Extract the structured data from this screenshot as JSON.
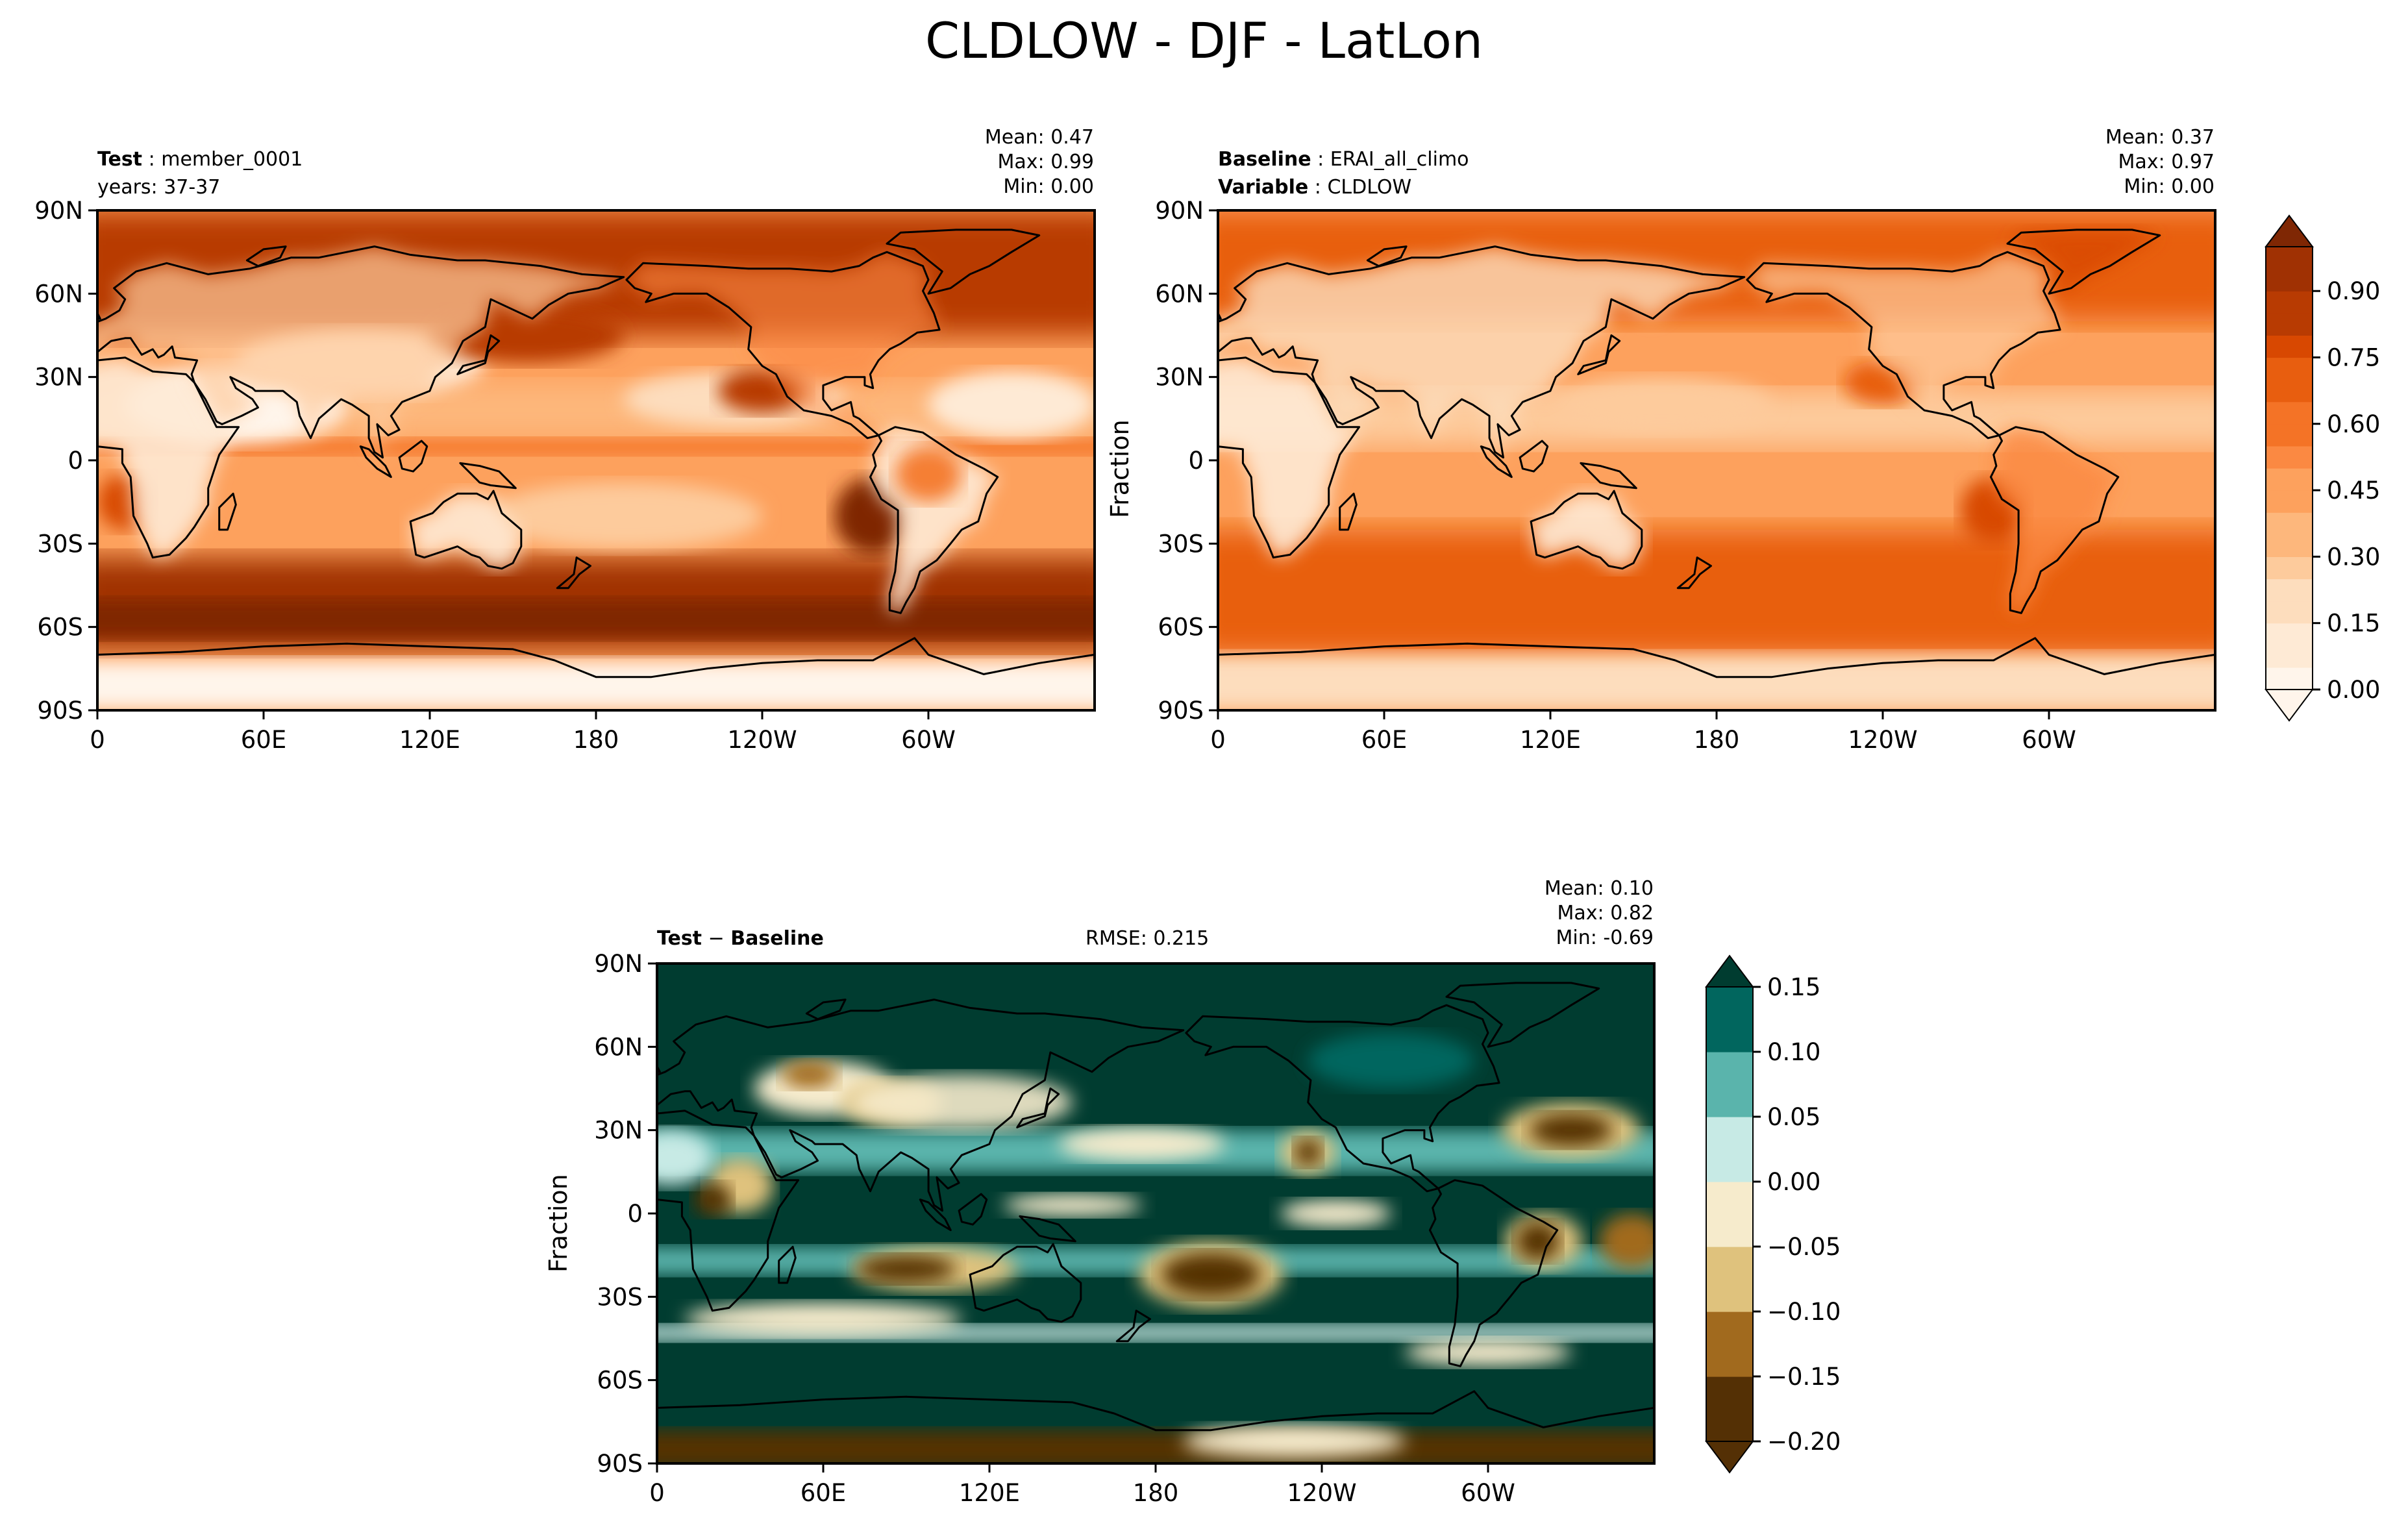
{
  "figure": {
    "title": "CLDLOW - DJF - LatLon"
  },
  "panels": {
    "test": {
      "label_key": "Test",
      "label_value": "member_0001",
      "line2": "years: 37-37",
      "mean": "Mean:  0.47",
      "max": "Max:  0.99",
      "min": "Min:  0.00"
    },
    "baseline": {
      "label_key": "Baseline",
      "label_value": "ERAI_all_climo",
      "line2_key": "Variable",
      "line2_value": "CLDLOW",
      "mean": "Mean:  0.37",
      "max": "Max:  0.97",
      "min": "Min:  0.00",
      "ylabel": "Fraction"
    },
    "diff": {
      "label_key": "Test",
      "label_sep": " − ",
      "label_key2": "Baseline",
      "rmse": "RMSE: 0.215",
      "mean": "Mean:  0.10",
      "max": "Max:  0.82",
      "min": "Min: -0.69",
      "ylabel": "Fraction"
    }
  },
  "colors": {
    "oranges": [
      "#fff5eb",
      "#feead5",
      "#fdddbd",
      "#fdcb9c",
      "#fdb77c",
      "#fda15d",
      "#fb8942",
      "#f47326",
      "#e85e0f",
      "#d84801",
      "#b83b02",
      "#a03103",
      "#7f2704"
    ],
    "diverging": [
      "#543005",
      "#a16a1e",
      "#dfc27d",
      "#f6ebcc",
      "#c7eae5",
      "#5ab4ac",
      "#01665e",
      "#003c30"
    ]
  },
  "chart_data": [
    {
      "type": "heatmap",
      "name": "Test",
      "variable": "CLDLOW",
      "x_ticks": [
        "0",
        "60E",
        "120E",
        "180",
        "120W",
        "60W"
      ],
      "y_ticks": [
        "90N",
        "60N",
        "30N",
        "0",
        "30S",
        "60S",
        "90S"
      ],
      "xlim": [
        0,
        360
      ],
      "ylim": [
        -90,
        90
      ],
      "value_range": [
        0.0,
        0.99
      ],
      "mean": 0.47,
      "max": 0.99,
      "min": 0.0
    },
    {
      "type": "heatmap",
      "name": "Baseline",
      "variable": "CLDLOW",
      "x_ticks": [
        "0",
        "60E",
        "120E",
        "180",
        "120W",
        "60W"
      ],
      "y_ticks": [
        "90N",
        "60N",
        "30N",
        "0",
        "30S",
        "60S",
        "90S"
      ],
      "xlim": [
        0,
        360
      ],
      "ylim": [
        -90,
        90
      ],
      "value_range": [
        0.0,
        0.97
      ],
      "mean": 0.37,
      "max": 0.97,
      "min": 0.0,
      "colorbar": {
        "ticks": [
          0.0,
          0.15,
          0.3,
          0.45,
          0.6,
          0.75,
          0.9
        ],
        "tick_labels": [
          "0.00",
          "0.15",
          "0.30",
          "0.45",
          "0.60",
          "0.75",
          "0.90"
        ],
        "range": [
          0.0,
          1.0
        ],
        "extend": "both"
      }
    },
    {
      "type": "heatmap",
      "name": "Test − Baseline",
      "variable": "CLDLOW",
      "x_ticks": [
        "0",
        "60E",
        "120E",
        "180",
        "120W",
        "60W"
      ],
      "y_ticks": [
        "90N",
        "60N",
        "30N",
        "0",
        "30S",
        "60S",
        "90S"
      ],
      "xlim": [
        0,
        360
      ],
      "ylim": [
        -90,
        90
      ],
      "mean": 0.1,
      "max": 0.82,
      "min": -0.69,
      "rmse": 0.215,
      "colorbar": {
        "levels": [
          -0.2,
          -0.15,
          -0.1,
          -0.05,
          0.0,
          0.05,
          0.1,
          0.15
        ],
        "tick_labels": [
          "−0.20",
          "−0.15",
          "−0.10",
          "−0.05",
          "0.00",
          "0.05",
          "0.10",
          "0.15"
        ],
        "extend": "both"
      }
    }
  ]
}
